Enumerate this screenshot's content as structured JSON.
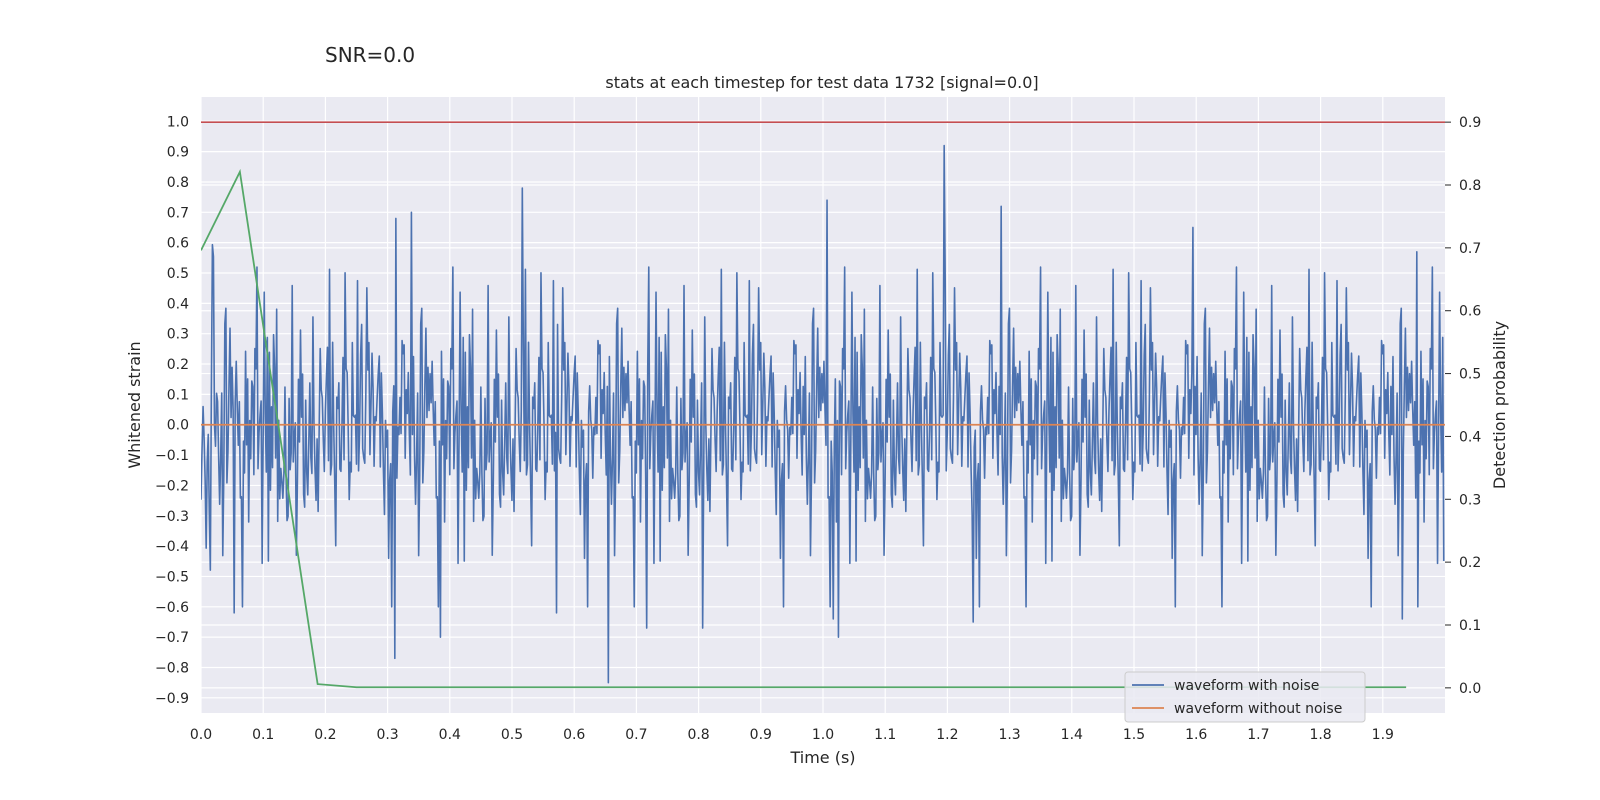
{
  "chart_data": {
    "type": "line",
    "suptitle": "SNR=0.0",
    "title": "stats at each timestep for test data 1732 [signal=0.0]",
    "xlabel": "Time (s)",
    "ylabel": "Whitened strain",
    "y2label": "Detection probability",
    "xlim": [
      0.0,
      2.0
    ],
    "ylim": [
      -0.95,
      1.08
    ],
    "y2lim": [
      -0.04,
      0.94
    ],
    "xticks": [
      "0.0",
      "0.1",
      "0.2",
      "0.3",
      "0.4",
      "0.5",
      "0.6",
      "0.7",
      "0.8",
      "0.9",
      "1.0",
      "1.1",
      "1.2",
      "1.3",
      "1.4",
      "1.5",
      "1.6",
      "1.7",
      "1.8",
      "1.9"
    ],
    "yticks": [
      "1.0",
      "0.9",
      "0.8",
      "0.7",
      "0.6",
      "0.5",
      "0.4",
      "0.3",
      "0.2",
      "0.1",
      "0.0",
      "−0.1",
      "−0.2",
      "−0.3",
      "−0.4",
      "−0.5",
      "−0.6",
      "−0.7",
      "−0.8",
      "−0.9"
    ],
    "y2ticks": [
      "0.9",
      "0.8",
      "0.7",
      "0.6",
      "0.5",
      "0.4",
      "0.3",
      "0.2",
      "0.1",
      "0.0"
    ],
    "grid": true,
    "legend_position": "lower-right",
    "threshold": {
      "axis": "right",
      "value": 0.9,
      "color": "#c44e52"
    },
    "series": [
      {
        "name": "waveform with noise",
        "axis": "left",
        "color": "#4c72b0",
        "generated": true,
        "n_points": 1200,
        "noise_sigma": 0.22,
        "peaks": [
          {
            "x": 1.195,
            "y": 1.0
          },
          {
            "x": 1.194,
            "y": 0.92
          },
          {
            "x": 0.517,
            "y": 0.78
          },
          {
            "x": 1.006,
            "y": 0.74
          },
          {
            "x": 1.286,
            "y": 0.72
          },
          {
            "x": 0.338,
            "y": 0.7
          },
          {
            "x": 0.314,
            "y": 0.68
          },
          {
            "x": 0.655,
            "y": -0.85
          },
          {
            "x": 0.311,
            "y": -0.77
          },
          {
            "x": 1.025,
            "y": -0.7
          },
          {
            "x": 0.385,
            "y": -0.7
          },
          {
            "x": 1.241,
            "y": -0.65
          },
          {
            "x": 1.932,
            "y": -0.64
          },
          {
            "x": 0.053,
            "y": -0.62
          },
          {
            "x": 1.016,
            "y": -0.64
          },
          {
            "x": 0.572,
            "y": -0.62
          },
          {
            "x": 0.806,
            "y": -0.67
          },
          {
            "x": 0.716,
            "y": -0.67
          },
          {
            "x": 1.594,
            "y": 0.65
          },
          {
            "x": 1.955,
            "y": 0.57
          }
        ]
      },
      {
        "name": "waveform without noise",
        "axis": "left",
        "color": "#dd8452",
        "x": [
          0.0,
          2.0
        ],
        "y": [
          0.0,
          0.0
        ]
      },
      {
        "name": "detection probability",
        "axis": "right",
        "color": "#55a868",
        "x": [
          0.0,
          0.0625,
          0.1875,
          0.25,
          0.3125,
          0.4375,
          0.5625,
          0.6875,
          0.8125,
          0.9375,
          1.0625,
          1.1875,
          1.3125,
          1.4375,
          1.5625,
          1.6875,
          1.8125,
          1.9375
        ],
        "y": [
          0.696,
          0.821,
          0.006,
          0.001,
          0.001,
          0.001,
          0.001,
          0.001,
          0.001,
          0.001,
          0.001,
          0.001,
          0.001,
          0.001,
          0.001,
          0.001,
          0.001,
          0.001
        ]
      }
    ],
    "legend": [
      "waveform with noise",
      "waveform without noise"
    ]
  }
}
